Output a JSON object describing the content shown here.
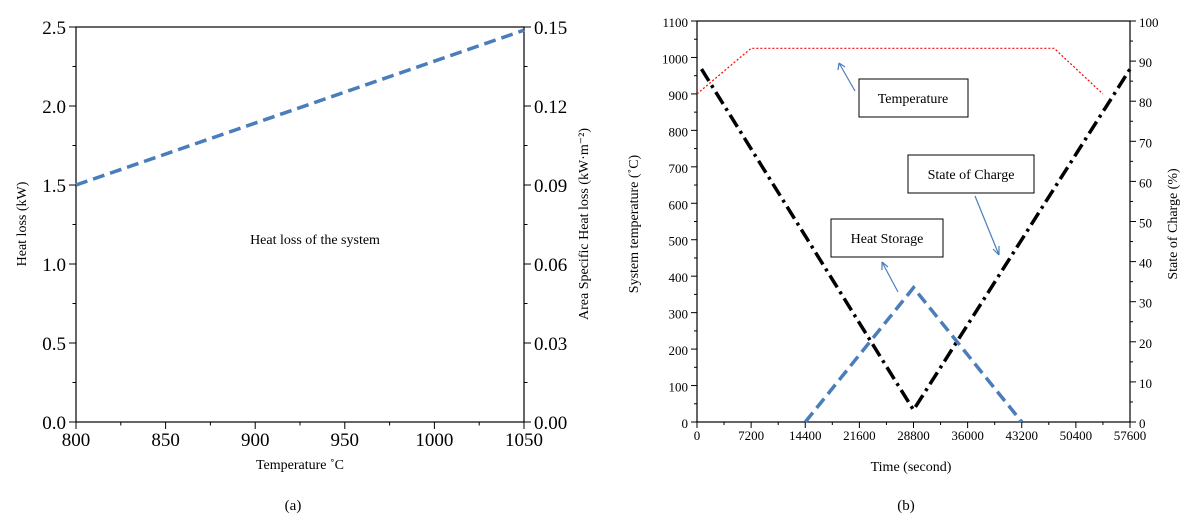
{
  "chart_data": [
    {
      "type": "line",
      "panel_caption": "(a)",
      "title": "",
      "xlabel": "Temperature ˚C",
      "ylabel": "Heat loss (kW)",
      "y2label": "Area Specific Heat loss (kW·m⁻²)",
      "xlim": [
        800,
        1050
      ],
      "ylim": [
        0,
        2.5
      ],
      "y2lim": [
        0,
        0.15
      ],
      "x_ticks": [
        "800",
        "850",
        "900",
        "950",
        "1000",
        "1050"
      ],
      "y_ticks": [
        "0.0",
        "0.5",
        "1.0",
        "1.5",
        "2.0",
        "2.5"
      ],
      "y2_ticks": [
        "0.00",
        "0.03",
        "0.06",
        "0.09",
        "0.12",
        "0.15"
      ],
      "annotation": "Heat loss of the system",
      "series": [
        {
          "x": [
            800,
            1050
          ],
          "y": [
            1.5,
            2.48
          ],
          "color": "#4a7ebb",
          "style": "dashed"
        }
      ]
    },
    {
      "type": "line",
      "panel_caption": "(b)",
      "title": "",
      "xlabel": "Time (second)",
      "ylabel": "System temperature (˚C)",
      "y2label": "State of Charge (%)",
      "xlim": [
        0,
        57600
      ],
      "ylim": [
        0,
        1100
      ],
      "y2lim": [
        0,
        100
      ],
      "x_ticks": [
        "0",
        "7200",
        "14400",
        "21600",
        "28800",
        "36000",
        "43200",
        "50400",
        "57600"
      ],
      "y_ticks": [
        "0",
        "100",
        "200",
        "300",
        "400",
        "500",
        "600",
        "700",
        "800",
        "900",
        "1000",
        "1100"
      ],
      "y2_ticks": [
        "0",
        "10",
        "20",
        "30",
        "40",
        "50",
        "60",
        "70",
        "80",
        "90",
        "100"
      ],
      "annotations": [
        "Temperature",
        "State of Charge",
        "Heat Storage"
      ],
      "series": [
        {
          "axis": "left",
          "label": "Temperature",
          "x": [
            0,
            7200,
            47500,
            54000
          ],
          "y": [
            900,
            1025,
            1025,
            900
          ],
          "color": "#ff0000",
          "style": "dotted"
        },
        {
          "axis": "right",
          "label": "State of Charge",
          "x": [
            600,
            28800,
            57600
          ],
          "y": [
            88,
            3,
            88
          ],
          "color": "#000000",
          "style": "dashdot"
        },
        {
          "axis": "right",
          "label": "Heat Storage",
          "x": [
            14400,
            28800,
            43200
          ],
          "y": [
            0,
            33.5,
            0
          ],
          "color": "#4a7ebb",
          "style": "dashed"
        }
      ]
    }
  ]
}
